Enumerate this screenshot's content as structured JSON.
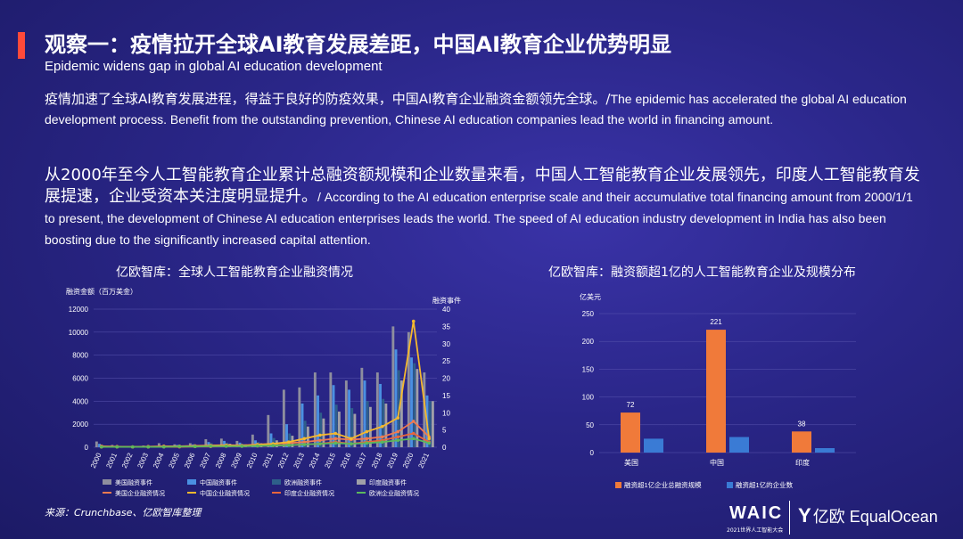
{
  "header": {
    "title": "观察一：疫情拉开全球AI教育发展差距，中国AI教育企业优势明显",
    "subtitle_en": "Epidemic widens gap in global AI education development"
  },
  "para1": {
    "zh": "疫情加速了全球AI教育发展进程，得益于良好的防疫效果，中国AI教育企业融资金额领先全球。/",
    "en": "The epidemic has accelerated the global AI education development process. Benefit from the outstanding prevention, Chinese AI education companies lead the world in financing amount."
  },
  "para2": {
    "zh": "从2000年至今人工智能教育企业累计总融资额规模和企业数量来看，中国人工智能教育企业发展领先，印度人工智能教育发展提速，企业受资本关注度明显提升。",
    "en": "/ According to the AI education enterprise scale and their accumulative total financing amount from 2000/1/1 to present,  the development of Chinese AI education enterprises leads the world. The speed of AI education industry development in India has also been boosting due to the significantly increased capital attention."
  },
  "chart_titles": {
    "left": "亿欧智库：全球人工智能教育企业融资情况",
    "right": "亿欧智库：融资额超1亿的人工智能教育企业及规模分布"
  },
  "source": "来源：Crunchbase、亿欧智库整理",
  "logos": {
    "waic": "WAIC",
    "waic_sub": "2021世界人工智能大会",
    "equalocean_mark": "Y",
    "equalocean": "亿欧 EqualOcean"
  },
  "colors": {
    "us_count": "#8e8e9e",
    "cn_count": "#4a90e2",
    "eu_count": "#2e5f8a",
    "in_count": "#a0a0a8",
    "us_amount": "#f07a50",
    "cn_amount": "#f5b82e",
    "in_amount": "#e8663c",
    "eu_amount": "#5cb85c",
    "bar_orange": "#f07a3a",
    "bar_blue": "#3a7bd5"
  },
  "chart_data": [
    {
      "type": "bar",
      "ylabel": "融资金额（百万美金）",
      "y2label": "融资事件",
      "ylim": [
        0,
        12000
      ],
      "y2lim": [
        0,
        40
      ],
      "yticks": [
        0,
        2000,
        4000,
        6000,
        8000,
        10000,
        12000
      ],
      "y2ticks": [
        0,
        5,
        10,
        15,
        20,
        25,
        30,
        35,
        40
      ],
      "categories": [
        "2000",
        "2001",
        "2002",
        "2003",
        "2004",
        "2005",
        "2006",
        "2007",
        "2008",
        "2009",
        "2010",
        "2011",
        "2012",
        "2013",
        "2014",
        "2015",
        "2016",
        "2017",
        "2018",
        "2019",
        "2020",
        "2021"
      ],
      "series": [
        {
          "name": "美国融资事件",
          "kind": "bar",
          "axis": "left",
          "color_key": "us_count",
          "values": [
            500,
            200,
            100,
            150,
            350,
            250,
            350,
            700,
            750,
            550,
            1100,
            2800,
            5000,
            5200,
            6500,
            6500,
            5800,
            6900,
            6500,
            10500,
            10000,
            6500
          ]
        },
        {
          "name": "中国融资事件",
          "kind": "bar",
          "axis": "left",
          "color_key": "cn_count",
          "values": [
            300,
            100,
            50,
            100,
            150,
            200,
            250,
            450,
            550,
            400,
            600,
            1200,
            2000,
            3800,
            4500,
            5400,
            5000,
            5800,
            5500,
            8500,
            7800,
            4500
          ]
        },
        {
          "name": "欧洲融资事件",
          "kind": "bar",
          "axis": "left",
          "color_key": "eu_count",
          "values": [
            200,
            100,
            50,
            80,
            150,
            150,
            200,
            350,
            400,
            300,
            450,
            800,
            1200,
            2300,
            3000,
            3700,
            3400,
            4000,
            4200,
            6700,
            7300,
            4000
          ]
        },
        {
          "name": "印度融资事件",
          "kind": "bar",
          "axis": "left",
          "color_key": "in_count",
          "values": [
            100,
            50,
            30,
            50,
            80,
            100,
            150,
            200,
            300,
            250,
            350,
            600,
            1000,
            1800,
            2500,
            3100,
            2900,
            3500,
            3800,
            5800,
            6800,
            4000
          ]
        },
        {
          "name": "美国企业融资情况",
          "kind": "line",
          "axis": "right",
          "color_key": "us_amount",
          "values": [
            0.3,
            0.2,
            0.1,
            0.2,
            0.3,
            0.3,
            0.4,
            0.5,
            0.6,
            0.5,
            0.8,
            1.0,
            1.2,
            1.5,
            2.0,
            2.5,
            2.2,
            2.5,
            3.0,
            4.5,
            7.5,
            3.0
          ]
        },
        {
          "name": "中国企业融资情况",
          "kind": "line",
          "axis": "right",
          "color_key": "cn_amount",
          "values": [
            0.1,
            0.1,
            0.1,
            0.1,
            0.2,
            0.2,
            0.3,
            0.4,
            0.5,
            0.4,
            0.7,
            1.0,
            1.5,
            2.5,
            3.5,
            4.0,
            2.5,
            4.5,
            6.0,
            8.5,
            36.5,
            2.5
          ]
        },
        {
          "name": "印度企业融资情况",
          "kind": "line",
          "axis": "right",
          "color_key": "in_amount",
          "values": [
            0.1,
            0.1,
            0.1,
            0.1,
            0.1,
            0.1,
            0.2,
            0.2,
            0.3,
            0.3,
            0.4,
            0.5,
            0.6,
            0.8,
            1.0,
            1.5,
            1.0,
            1.5,
            2.0,
            3.0,
            4.0,
            1.5
          ]
        },
        {
          "name": "欧洲企业融资情况",
          "kind": "line",
          "axis": "right",
          "color_key": "eu_amount",
          "values": [
            0.1,
            0.1,
            0.1,
            0.1,
            0.1,
            0.2,
            0.2,
            0.3,
            0.3,
            0.3,
            0.4,
            0.5,
            0.6,
            0.8,
            1.0,
            1.2,
            1.0,
            1.2,
            1.5,
            2.0,
            2.5,
            1.2
          ]
        }
      ]
    },
    {
      "type": "bar",
      "ylabel": "亿美元",
      "ylim": [
        0,
        250
      ],
      "yticks": [
        0,
        50,
        100,
        150,
        200,
        250
      ],
      "categories": [
        "美国",
        "中国",
        "印度"
      ],
      "series": [
        {
          "name": "融资超1亿企业总融资规模",
          "color_key": "bar_orange",
          "values": [
            72,
            221,
            38
          ],
          "labels": [
            "72",
            "221",
            "38"
          ]
        },
        {
          "name": "融资超1亿的企业数",
          "color_key": "bar_blue",
          "values": [
            25,
            28,
            8
          ]
        }
      ]
    }
  ]
}
